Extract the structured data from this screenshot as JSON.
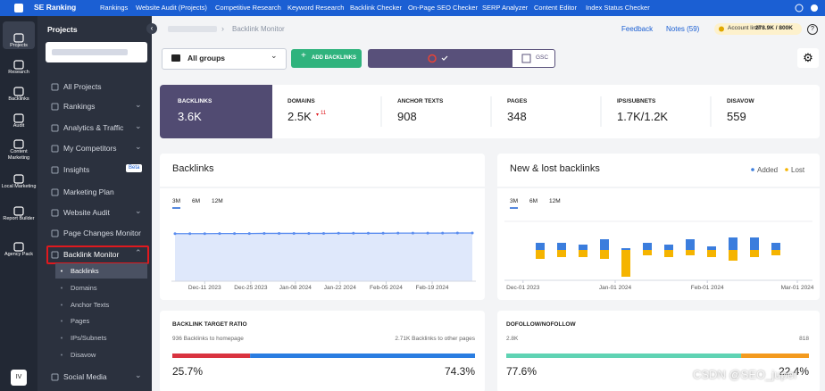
{
  "topbar": {
    "brand": "SE Ranking",
    "nav": [
      "Rankings",
      "Website Audit (Projects)",
      "Competitive Research",
      "Keyword Research",
      "Backlink Checker",
      "On-Page SEO Checker",
      "SERP Analyzer",
      "Content Editor",
      "Index Status Checker"
    ]
  },
  "sidebar": {
    "icons": [
      "Projects",
      "Research",
      "Backlinks",
      "Audit",
      "Content Marketing",
      "Local Marketing",
      "Report Builder",
      "Agency Pack"
    ],
    "avatar": "IV"
  },
  "projects": {
    "title": "Projects",
    "menu": [
      "All Projects",
      "Rankings",
      "Analytics & Traffic",
      "My Competitors",
      "Insights",
      "Marketing Plan",
      "Website Audit",
      "Page Changes Monitor",
      "Backlink Monitor",
      "Social Media"
    ],
    "badge": "Beta",
    "submenu": [
      "Backlinks",
      "Domains",
      "Anchor Texts",
      "Pages",
      "IPs/Subnets",
      "Disavow"
    ]
  },
  "header": {
    "breadcrumb": "Backlink Monitor",
    "feedback": "Feedback",
    "notes": "Notes (59)",
    "account_limit": "Account limit",
    "account_value": "278.9K / 800K"
  },
  "toolbar": {
    "group": "All groups",
    "add": "ADD BACKLINKS",
    "gsc": "GSC"
  },
  "stats": [
    {
      "label": "BACKLINKS",
      "value": "3.6K"
    },
    {
      "label": "DOMAINS",
      "value": "2.5K",
      "change": "11"
    },
    {
      "label": "ANCHOR TEXTS",
      "value": "908"
    },
    {
      "label": "PAGES",
      "value": "348"
    },
    {
      "label": "IPS/SUBNETS",
      "value": "1.7K/1.2K"
    },
    {
      "label": "DISAVOW",
      "value": "559"
    }
  ],
  "chart_data": [
    {
      "type": "line",
      "title": "Backlinks",
      "tabs": [
        "3M",
        "6M",
        "12M"
      ],
      "color": "#5b8def",
      "values": [
        3.55,
        3.55,
        3.55,
        3.56,
        3.56,
        3.56,
        3.57,
        3.57,
        3.57,
        3.57,
        3.57,
        3.58,
        3.58,
        3.58,
        3.58,
        3.59,
        3.59,
        3.59,
        3.59,
        3.6,
        3.6
      ],
      "ylim": [
        0,
        5
      ],
      "xticks": [
        {
          "value": 2,
          "label": "Dec-11 2023"
        },
        {
          "value": 5.1,
          "label": "Dec-25 2023"
        },
        {
          "value": 8.1,
          "label": "Jan-08 2024"
        },
        {
          "value": 11.1,
          "label": "Jan-22 2024"
        },
        {
          "value": 14.2,
          "label": "Feb-05 2024"
        },
        {
          "value": 17.3,
          "label": "Feb-19 2024"
        }
      ]
    },
    {
      "type": "bar",
      "title": "New & lost backlinks",
      "tabs": [
        "3M",
        "6M",
        "12M"
      ],
      "series": [
        {
          "name": "Added",
          "color": "#3b7ddd",
          "values": [
            8,
            8,
            6,
            12,
            2,
            8,
            6,
            12,
            4,
            14,
            14,
            8
          ]
        },
        {
          "name": "Lost",
          "color": "#f5b400",
          "values": [
            -10,
            -8,
            -8,
            -10,
            -30,
            -6,
            -8,
            -6,
            -8,
            -12,
            -8,
            -6
          ]
        }
      ],
      "ylim": [
        -32,
        20
      ],
      "xticks": [
        {
          "value": -0.8,
          "label": "Dec-01 2023"
        },
        {
          "value": 3.5,
          "label": "Jan-01 2024"
        },
        {
          "value": 7.8,
          "label": "Feb-01 2024"
        },
        {
          "value": 12,
          "label": "Mar-01 2024"
        }
      ]
    }
  ],
  "ratios": [
    {
      "title": "BACKLINK TARGET RATIO",
      "left": "936 Backlinks to homepage",
      "right": "2.71K Backlinks to other pages",
      "values": [
        25.7,
        74.3
      ],
      "value_labels": [
        "25.7%",
        "74.3%"
      ],
      "colors": [
        "#d9333f",
        "#2a7de1"
      ],
      "xlim": [
        0,
        100
      ]
    },
    {
      "title": "DOFOLLOW/NOFOLLOW",
      "left": "2.8K",
      "right": "818",
      "values": [
        77.6,
        22.4
      ],
      "value_labels": [
        "77.6%",
        "22.4%"
      ],
      "colors": [
        "#5fd3b3",
        "#f39a1e"
      ],
      "xlim": [
        0,
        100
      ]
    }
  ],
  "watermark": "CSDN @SEO_juper"
}
